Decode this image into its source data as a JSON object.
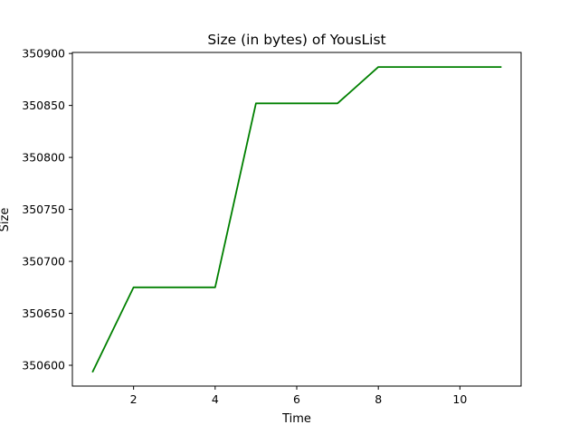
{
  "chart_data": {
    "type": "line",
    "title": "Size (in bytes) of YousList",
    "xlabel": "Time",
    "ylabel": "Size",
    "x": [
      1,
      2,
      3,
      4,
      5,
      6,
      7,
      8,
      9,
      10,
      11
    ],
    "series": [
      {
        "values": [
          350594,
          350675,
          350675,
          350675,
          350852,
          350852,
          350852,
          350887,
          350887,
          350887,
          350887
        ],
        "color": "#008000"
      }
    ],
    "xlim": [
      0.5,
      11.5
    ],
    "ylim": [
      350580,
      350901
    ],
    "xticks": [
      2,
      4,
      6,
      8,
      10
    ],
    "yticks": [
      350600,
      350650,
      350700,
      350750,
      350800,
      350850,
      350900
    ],
    "grid": false,
    "legend": "none"
  }
}
